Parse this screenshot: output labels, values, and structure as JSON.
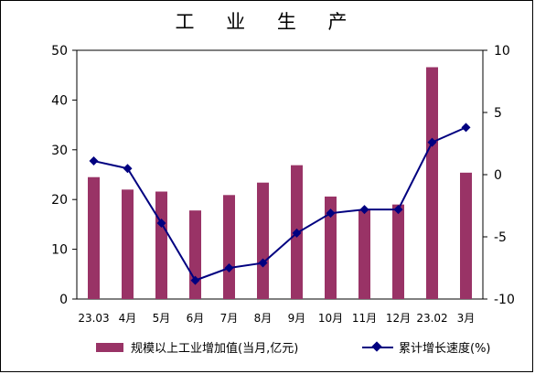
{
  "chart_data": {
    "type": "bar+line",
    "title": "工 业 生 产",
    "categories": [
      "23.03",
      "4月",
      "5月",
      "6月",
      "7月",
      "8月",
      "9月",
      "10月",
      "11月",
      "12月",
      "23.02",
      "3月"
    ],
    "series": [
      {
        "name": "规模以上工业增加值(当月,亿元)",
        "type": "bar",
        "axis": "left",
        "color": "#993366",
        "values": [
          24.5,
          22.0,
          21.6,
          17.8,
          20.9,
          23.4,
          26.9,
          20.6,
          18.0,
          19.0,
          46.6,
          25.4
        ]
      },
      {
        "name": "累计增长速度(%)",
        "type": "line",
        "axis": "right",
        "color": "#000080",
        "values": [
          1.1,
          0.5,
          -3.9,
          -8.5,
          -7.5,
          -7.1,
          -4.7,
          -3.1,
          -2.8,
          -2.8,
          2.6,
          3.8
        ]
      }
    ],
    "y_left": {
      "min": 0,
      "max": 50,
      "ticks": [
        "0",
        "10",
        "20",
        "30",
        "40",
        "50"
      ]
    },
    "y_right": {
      "min": -10,
      "max": 10,
      "ticks": [
        "-10",
        "-5",
        "0",
        "5",
        "10"
      ]
    },
    "legend_position": "bottom",
    "grid": false
  }
}
